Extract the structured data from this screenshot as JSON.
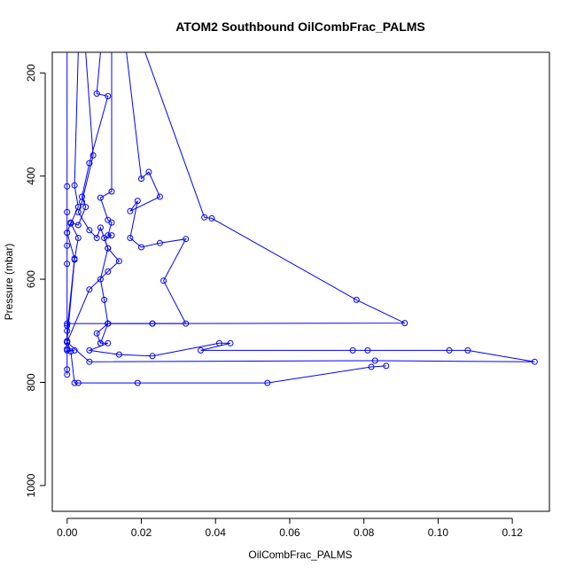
{
  "chart_data": {
    "type": "line",
    "title": "ATOM2 Southbound OilCombFrac_PALMS",
    "xlabel": "OilCombFrac_PALMS",
    "ylabel": "Pressure (mbar)",
    "xlim": [
      -0.004,
      0.13
    ],
    "ylim": [
      1050,
      160
    ],
    "y_reversed": true,
    "x_ticks": [
      0.0,
      0.02,
      0.04,
      0.06,
      0.08,
      0.1,
      0.12
    ],
    "x_tick_labels": [
      "0.00",
      "0.02",
      "0.04",
      "0.06",
      "0.08",
      "0.10",
      "0.12"
    ],
    "y_ticks": [
      200,
      400,
      600,
      800,
      1000
    ],
    "y_tick_labels": [
      "200",
      "400",
      "600",
      "800",
      "1000"
    ],
    "grid": false,
    "legend": "none",
    "series_color": "#0000ff",
    "series": [
      {
        "values": [
          [
            0.0,
            160
          ],
          [
            0.0,
            420
          ],
          [
            0.0,
            470
          ],
          [
            0.0,
            510
          ],
          [
            0.0,
            535
          ],
          [
            0.0,
            570
          ],
          [
            0.0,
            690
          ],
          [
            0.0,
            735
          ],
          [
            0.0,
            775
          ],
          [
            0.0,
            785
          ],
          [
            0.0,
            160
          ]
        ]
      },
      {
        "values": [
          [
            0.003,
            160
          ],
          [
            0.002,
            418
          ],
          [
            0.003,
            460
          ],
          [
            0.001,
            492
          ],
          [
            0.003,
            520
          ],
          [
            0.002,
            562
          ],
          [
            0.0,
            720
          ],
          [
            0.001,
            740
          ],
          [
            0.002,
            801
          ],
          [
            0.003,
            801
          ],
          [
            0.019,
            801
          ],
          [
            0.054,
            801
          ],
          [
            0.082,
            770
          ],
          [
            0.086,
            768
          ]
        ]
      },
      {
        "values": [
          [
            0.009,
            160
          ],
          [
            0.008,
            240
          ],
          [
            0.011,
            245
          ],
          [
            0.006,
            375
          ],
          [
            0.004,
            440
          ],
          [
            0.005,
            460
          ],
          [
            0.003,
            495
          ],
          [
            0.001,
            490
          ],
          [
            0.0,
            510
          ],
          [
            0.002,
            560
          ],
          [
            0.0,
            700
          ],
          [
            0.0,
            722
          ],
          [
            0.0,
            738
          ],
          [
            0.002,
            738
          ]
        ]
      },
      {
        "values": [
          [
            0.012,
            160
          ],
          [
            0.012,
            430
          ],
          [
            0.009,
            442
          ],
          [
            0.011,
            485
          ],
          [
            0.012,
            490
          ],
          [
            0.011,
            515
          ],
          [
            0.012,
            515
          ],
          [
            0.01,
            520
          ],
          [
            0.011,
            540
          ],
          [
            0.014,
            565
          ],
          [
            0.011,
            585
          ],
          [
            0.006,
            620
          ],
          [
            0.0,
            722
          ],
          [
            0.0,
            738
          ]
        ]
      },
      {
        "values": [
          [
            0.016,
            160
          ],
          [
            0.02,
            405
          ],
          [
            0.022,
            392
          ],
          [
            0.025,
            440
          ],
          [
            0.017,
            468
          ],
          [
            0.019,
            448
          ],
          [
            0.017,
            520
          ],
          [
            0.02,
            538
          ],
          [
            0.025,
            530
          ],
          [
            0.032,
            522
          ],
          [
            0.026,
            603
          ],
          [
            0.032,
            686
          ],
          [
            0.023,
            686
          ],
          [
            0.011,
            686
          ],
          [
            0.0,
            686
          ]
        ]
      },
      {
        "values": [
          [
            0.021,
            160
          ],
          [
            0.037,
            480
          ],
          [
            0.039,
            482
          ],
          [
            0.078,
            640
          ],
          [
            0.091,
            685
          ],
          [
            0.023,
            686
          ],
          [
            0.011,
            686
          ],
          [
            0.009,
            724
          ],
          [
            0.011,
            724
          ],
          [
            0.006,
            738
          ],
          [
            0.014,
            746
          ],
          [
            0.023,
            749
          ],
          [
            0.041,
            724
          ],
          [
            0.044,
            724
          ],
          [
            0.036,
            738
          ],
          [
            0.077,
            738
          ],
          [
            0.081,
            738
          ],
          [
            0.103,
            738
          ],
          [
            0.108,
            738
          ],
          [
            0.126,
            760
          ],
          [
            0.083,
            758
          ],
          [
            0.006,
            760
          ],
          [
            0.0,
            722
          ]
        ]
      },
      {
        "values": [
          [
            0.005,
            160
          ],
          [
            0.007,
            360
          ],
          [
            0.004,
            450
          ],
          [
            0.003,
            470
          ],
          [
            0.006,
            505
          ],
          [
            0.008,
            520
          ],
          [
            0.009,
            500
          ],
          [
            0.011,
            540
          ],
          [
            0.009,
            600
          ],
          [
            0.01,
            640
          ],
          [
            0.011,
            686
          ],
          [
            0.008,
            705
          ],
          [
            0.009,
            724
          ]
        ]
      }
    ]
  }
}
